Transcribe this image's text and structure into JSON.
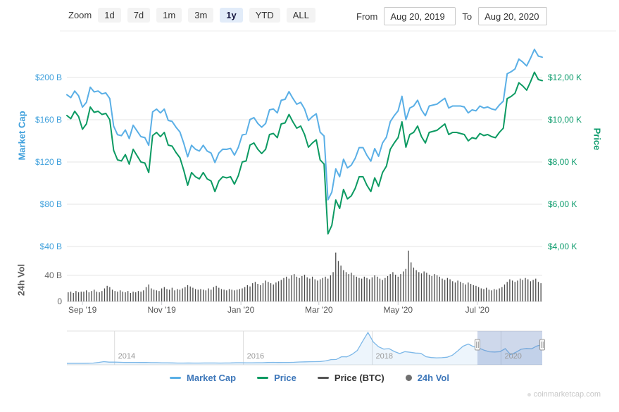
{
  "toolbar": {
    "zoom_label": "Zoom",
    "zoom_buttons": [
      {
        "label": "1d",
        "selected": false
      },
      {
        "label": "7d",
        "selected": false
      },
      {
        "label": "1m",
        "selected": false
      },
      {
        "label": "3m",
        "selected": false
      },
      {
        "label": "1y",
        "selected": true
      },
      {
        "label": "YTD",
        "selected": false
      },
      {
        "label": "ALL",
        "selected": false
      }
    ],
    "from_label": "From",
    "from_value": "Aug 20, 2019",
    "to_label": "To",
    "to_value": "Aug 20, 2020"
  },
  "axes": {
    "market_cap": {
      "title": "Market Cap",
      "ticks": [
        "$200 B",
        "$160 B",
        "$120 B",
        "$80 B",
        "$40 B"
      ],
      "color": "#3fa0dc"
    },
    "price": {
      "title": "Price",
      "ticks": [
        "$12,00 K",
        "$10,00 K",
        "$8,00 K",
        "$6,00 K",
        "$4,00 K"
      ],
      "color": "#0e9c6d"
    },
    "volume": {
      "title": "24h Vol",
      "ticks": [
        "40 B",
        "0"
      ],
      "color": "#666666"
    },
    "x_ticks": [
      "Sep '19",
      "Nov '19",
      "Jan '20",
      "Mar '20",
      "May '20",
      "Jul '20"
    ]
  },
  "legend": {
    "items": [
      {
        "label": "Market Cap",
        "symbol": "line",
        "color": "#5aafe6",
        "text_color": "#3c76b9"
      },
      {
        "label": "Price",
        "symbol": "line",
        "color": "#0c9a62",
        "text_color": "#3c76b9"
      },
      {
        "label": "Price (BTC)",
        "symbol": "line",
        "color": "#555555",
        "text_color": "#333333"
      },
      {
        "label": "24h Vol",
        "symbol": "circle",
        "color": "#6f6f6f",
        "text_color": "#3c76b9"
      }
    ]
  },
  "navigator": {
    "year_labels": [
      "2014",
      "2016",
      "2018",
      "2020"
    ]
  },
  "watermark": "coinmarketcap.com",
  "chart_data": {
    "type": "line",
    "title": "",
    "date_from": "Aug 20, 2019",
    "date_to": "Aug 20, 2020",
    "x_tick_labels": [
      "Sep '19",
      "Nov '19",
      "Jan '20",
      "Mar '20",
      "May '20",
      "Jul '20"
    ],
    "x_tick_day_offsets": [
      12,
      73,
      134,
      194,
      255,
      316
    ],
    "total_days": 366,
    "left_axis": {
      "title": "Market Cap",
      "unit": "USD billions",
      "ticks": [
        200,
        160,
        120,
        80,
        40
      ],
      "min": 40,
      "max": 240
    },
    "right_axis": {
      "title": "Price",
      "unit": "USD thousands",
      "ticks": [
        12,
        10,
        8,
        6,
        4
      ],
      "min": 4,
      "max": 14
    },
    "volume_axis": {
      "title": "24h Vol",
      "unit": "USD billions",
      "ticks": [
        40,
        0
      ],
      "max": 43
    },
    "series": [
      {
        "name": "Market Cap",
        "type": "line",
        "axis": "left",
        "color": "#5aafe6",
        "unit": "USD billions",
        "values": [
          183.6,
          180.9,
          187.2,
          182.7,
          171.9,
          176.4,
          190.8,
          186.3,
          187.2,
          184.5,
          185.4,
          180.0,
          153.9,
          145.8,
          144.9,
          150.3,
          142.2,
          154.8,
          149.4,
          144.0,
          143.1,
          135.8,
          167.4,
          170.1,
          166.5,
          170.1,
          159.3,
          158.4,
          152.9,
          148.4,
          137.6,
          124.9,
          135.8,
          132.1,
          130.3,
          135.8,
          130.3,
          128.5,
          119.5,
          128.5,
          132.1,
          132.0,
          132.9,
          126.5,
          133.8,
          145.6,
          146.5,
          160.2,
          162.0,
          156.5,
          152.9,
          156.5,
          169.3,
          170.2,
          166.5,
          178.4,
          179.3,
          186.6,
          180.2,
          174.7,
          176.5,
          170.2,
          159.2,
          162.9,
          165.6,
          148.2,
          144.6,
          84.2,
          91.5,
          113.5,
          106.1,
          122.6,
          114.4,
          117.1,
          123.5,
          133.6,
          133.6,
          126.3,
          120.8,
          132.7,
          125.4,
          138.0,
          143.5,
          158.2,
          163.8,
          168.4,
          182.2,
          160.1,
          171.1,
          173.0,
          178.5,
          169.3,
          163.8,
          173.0,
          173.9,
          174.8,
          177.6,
          180.3,
          171.1,
          173.0,
          173.0,
          173.0,
          172.1,
          166.5,
          169.3,
          168.4,
          173.0,
          171.1,
          172.1,
          170.2,
          169.3,
          173.9,
          177.6,
          203.5,
          205.4,
          208.1,
          217.4,
          214.6,
          210.9,
          218.3,
          226.6,
          220.2,
          219.2
        ]
      },
      {
        "name": "Price",
        "type": "line",
        "axis": "right",
        "color": "#0c9a62",
        "unit": "USD thousands",
        "values": [
          10.2,
          10.05,
          10.4,
          10.15,
          9.55,
          9.8,
          10.6,
          10.35,
          10.4,
          10.25,
          10.3,
          10.0,
          8.55,
          8.1,
          8.05,
          8.35,
          7.9,
          8.6,
          8.3,
          8.0,
          7.95,
          7.5,
          9.25,
          9.4,
          9.2,
          9.4,
          8.8,
          8.75,
          8.45,
          8.2,
          7.6,
          6.9,
          7.5,
          7.3,
          7.2,
          7.5,
          7.2,
          7.1,
          6.6,
          7.1,
          7.3,
          7.25,
          7.3,
          6.95,
          7.35,
          8.0,
          8.05,
          8.8,
          8.9,
          8.6,
          8.4,
          8.6,
          9.3,
          9.35,
          9.15,
          9.8,
          9.85,
          10.25,
          9.9,
          9.6,
          9.7,
          9.3,
          8.7,
          8.9,
          9.05,
          8.1,
          7.9,
          4.6,
          5.0,
          6.2,
          5.8,
          6.7,
          6.25,
          6.4,
          6.75,
          7.3,
          7.3,
          6.9,
          6.6,
          7.25,
          6.85,
          7.5,
          7.8,
          8.6,
          8.9,
          9.15,
          9.9,
          8.7,
          9.3,
          9.4,
          9.7,
          9.2,
          8.9,
          9.4,
          9.45,
          9.5,
          9.65,
          9.8,
          9.3,
          9.4,
          9.4,
          9.35,
          9.3,
          9.0,
          9.15,
          9.1,
          9.35,
          9.25,
          9.3,
          9.2,
          9.15,
          9.4,
          9.6,
          11.0,
          11.1,
          11.25,
          11.75,
          11.6,
          11.4,
          11.8,
          12.25,
          11.9,
          11.85
        ]
      },
      {
        "name": "24h Vol",
        "type": "bar",
        "axis": "volume",
        "color": "#4a4a4a",
        "unit": "USD billions",
        "values": [
          14,
          15,
          13,
          16,
          14,
          15,
          15,
          17,
          14,
          16,
          18,
          15,
          14,
          16,
          20,
          24,
          22,
          18,
          16,
          15,
          17,
          15,
          14,
          16,
          13,
          15,
          14,
          16,
          15,
          17,
          22,
          26,
          20,
          18,
          17,
          16,
          20,
          22,
          19,
          18,
          21,
          17,
          19,
          18,
          20,
          22,
          25,
          23,
          21,
          19,
          18,
          19,
          18,
          17,
          20,
          18,
          22,
          24,
          21,
          19,
          18,
          17,
          19,
          18,
          17,
          18,
          19,
          20,
          22,
          25,
          23,
          28,
          30,
          27,
          25,
          28,
          32,
          30,
          28,
          26,
          29,
          31,
          33,
          36,
          38,
          35,
          40,
          42,
          38,
          36,
          39,
          41,
          37,
          35,
          38,
          34,
          32,
          34,
          36,
          38,
          35,
          40,
          45,
          75,
          62,
          55,
          48,
          45,
          42,
          44,
          40,
          38,
          36,
          35,
          38,
          36,
          34,
          37,
          40,
          38,
          35,
          33,
          36,
          39,
          42,
          45,
          41,
          38,
          42,
          46,
          50,
          78,
          60,
          52,
          48,
          45,
          43,
          46,
          44,
          41,
          39,
          42,
          40,
          38,
          35,
          33,
          36,
          34,
          31,
          29,
          32,
          30,
          28,
          26,
          29,
          27,
          25,
          24,
          22,
          20,
          19,
          21,
          18,
          17,
          19,
          18,
          20,
          22,
          26,
          30,
          34,
          32,
          30,
          32,
          35,
          33,
          36,
          34,
          31,
          33,
          35,
          30,
          28
        ]
      }
    ],
    "navigator": {
      "series_name": "Price (BTC), full history",
      "unit": "USD thousands",
      "x_start_year": 2013.26,
      "x_end_year": 2020.64,
      "year_ticks": [
        2014,
        2016,
        2018,
        2020
      ],
      "value_max": 19.5,
      "values": [
        0.1,
        0.1,
        0.1,
        0.1,
        0.12,
        0.2,
        0.6,
        1.1,
        0.8,
        0.85,
        0.7,
        0.6,
        0.63,
        0.6,
        0.58,
        0.62,
        0.5,
        0.48,
        0.4,
        0.38,
        0.32,
        0.22,
        0.24,
        0.25,
        0.23,
        0.24,
        0.26,
        0.28,
        0.28,
        0.23,
        0.27,
        0.32,
        0.43,
        0.43,
        0.42,
        0.41,
        0.45,
        0.45,
        0.58,
        0.67,
        0.58,
        0.61,
        0.64,
        0.71,
        0.9,
        0.97,
        1.05,
        1.1,
        1.2,
        1.6,
        2.4,
        2.5,
        4.2,
        4.1,
        5.7,
        8.2,
        14.0,
        19.5,
        13.5,
        10.5,
        9.0,
        9.3,
        7.5,
        6.2,
        7.4,
        7.0,
        6.5,
        6.4,
        4.2,
        3.7,
        3.5,
        3.6,
        3.9,
        5.2,
        7.9,
        10.8,
        12.2,
        10.5,
        9.7,
        8.3,
        7.3,
        7.2,
        7.4,
        9.3,
        5.5,
        7.0,
        8.9,
        9.4,
        9.2,
        11.0,
        11.8
      ],
      "selection": {
        "from_frac": 0.8637,
        "to_frac": 1.0,
        "from_label": "Aug 20, 2019",
        "to_label": "Aug 20, 2020"
      }
    }
  }
}
